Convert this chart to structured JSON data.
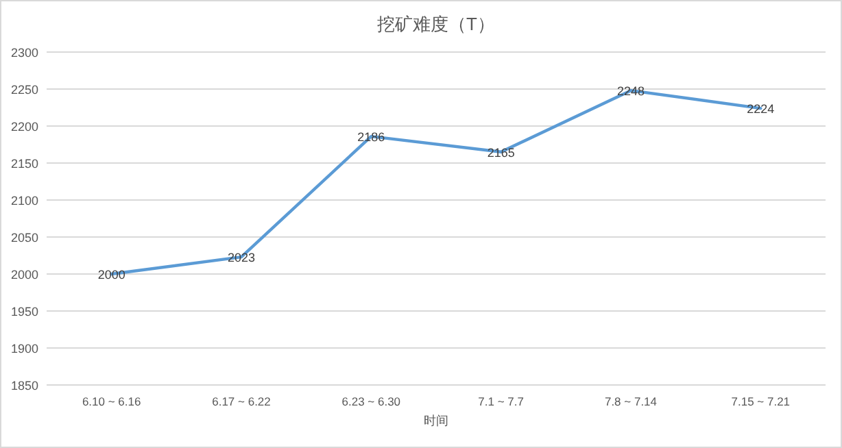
{
  "chart_data": {
    "type": "line",
    "title": "挖矿难度（T）",
    "xlabel": "时间",
    "categories": [
      "6.10 ~ 6.16",
      "6.17 ~ 6.22",
      "6.23 ~ 6.30",
      "7.1 ~ 7.7",
      "7.8 ~ 7.14",
      "7.15 ~ 7.21"
    ],
    "series": [
      {
        "color": "#5b9bd5",
        "values": [
          2000,
          2023,
          2186,
          2165,
          2248,
          2224
        ]
      }
    ],
    "ylim": [
      1850,
      2300
    ],
    "yticks": [
      1850,
      1900,
      1950,
      2000,
      2050,
      2100,
      2150,
      2200,
      2250,
      2300
    ],
    "grid": "y",
    "data_labels": true
  }
}
